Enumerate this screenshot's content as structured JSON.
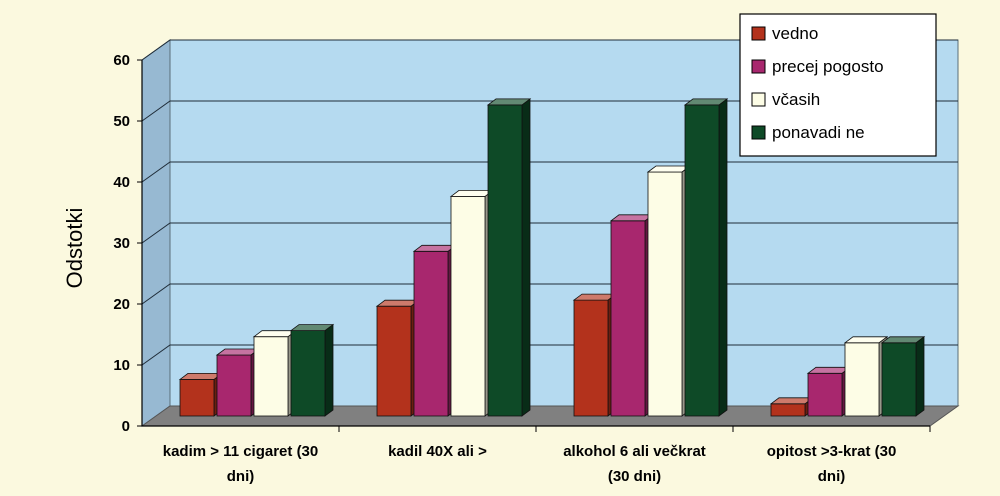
{
  "chart_data": {
    "type": "bar",
    "ylabel": "Odstotki",
    "ylim": [
      0,
      60
    ],
    "yticks": [
      0,
      10,
      20,
      30,
      40,
      50,
      60
    ],
    "categories": [
      [
        "kadim > 11 cigaret (30",
        "dni)"
      ],
      [
        "kadil 40X ali >"
      ],
      [
        "alkohol 6 ali večkrat",
        "(30 dni)"
      ],
      [
        "opitost >3-krat (30",
        "dni)"
      ]
    ],
    "series": [
      {
        "name": "vedno",
        "values": [
          6,
          18,
          19,
          2
        ],
        "color": "#b3321c"
      },
      {
        "name": "precej pogosto",
        "values": [
          10,
          27,
          32,
          7
        ],
        "color": "#a8276e"
      },
      {
        "name": "včasih",
        "values": [
          13,
          36,
          40,
          12
        ],
        "color": "#fdfde6"
      },
      {
        "name": "ponavadi ne",
        "values": [
          14,
          51,
          51,
          12
        ],
        "color": "#0e4a27"
      }
    ],
    "legend_position": "top-right",
    "grid": true
  }
}
